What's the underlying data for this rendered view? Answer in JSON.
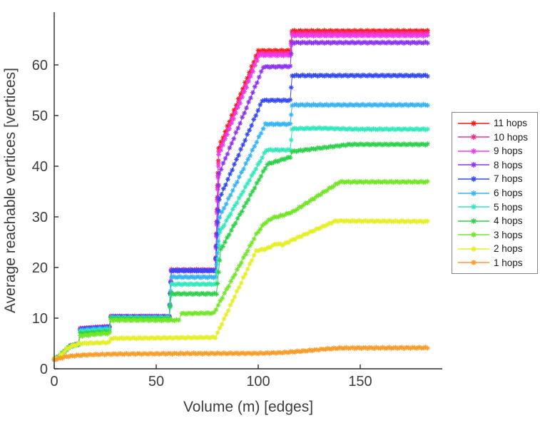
{
  "chart_data": {
    "type": "line",
    "title": "",
    "xlabel": "Volume (m) [edges]",
    "ylabel": "Average reachable vertices [vertices]",
    "xlim": [
      0,
      190
    ],
    "ylim": [
      0,
      70.4
    ],
    "xticks": [
      0,
      50,
      100,
      150
    ],
    "yticks": [
      0,
      10,
      20,
      30,
      40,
      50,
      60
    ],
    "grid": false,
    "marker": "asterisk",
    "axis_color": "#2b2b2b",
    "tick_label_color": "#3d3d3d",
    "legend_position": "outside-right",
    "series": [
      {
        "name": "11 hops",
        "color": "#fb1612",
        "points": [
          [
            0,
            1.9
          ],
          [
            2,
            2.3
          ],
          [
            4,
            3.0
          ],
          [
            6,
            3.8
          ],
          [
            8,
            4.5
          ],
          [
            10,
            4.7
          ],
          [
            12,
            4.9
          ],
          [
            12.8,
            7.9
          ],
          [
            22.3,
            8.2
          ],
          [
            27,
            8.3
          ],
          [
            27.8,
            10.3
          ],
          [
            56.4,
            10.3
          ],
          [
            57.4,
            19.5
          ],
          [
            79,
            19.5
          ],
          [
            80.6,
            43.6
          ],
          [
            100,
            62.8
          ],
          [
            115.7,
            62.8
          ],
          [
            116.6,
            66.7
          ],
          [
            183,
            66.7
          ]
        ]
      },
      {
        "name": "10 hops",
        "color": "#f8308c",
        "points": [
          [
            0,
            1.9
          ],
          [
            2,
            2.3
          ],
          [
            4,
            3.0
          ],
          [
            6,
            3.8
          ],
          [
            8,
            4.5
          ],
          [
            10,
            4.7
          ],
          [
            12,
            4.9
          ],
          [
            12.8,
            7.9
          ],
          [
            22.3,
            8.2
          ],
          [
            27,
            8.3
          ],
          [
            27.8,
            10.3
          ],
          [
            56.4,
            10.3
          ],
          [
            57.4,
            19.45
          ],
          [
            79,
            19.45
          ],
          [
            80.6,
            42.9
          ],
          [
            100,
            62.3
          ],
          [
            115.7,
            62.3
          ],
          [
            116.6,
            66.25
          ],
          [
            183,
            66.25
          ]
        ]
      },
      {
        "name": "9 hops",
        "color": "#ef38f2",
        "points": [
          [
            0,
            1.9
          ],
          [
            2,
            2.3
          ],
          [
            4,
            3.0
          ],
          [
            6,
            3.8
          ],
          [
            8,
            4.5
          ],
          [
            10,
            4.7
          ],
          [
            12,
            4.9
          ],
          [
            12.8,
            7.85
          ],
          [
            22.3,
            8.15
          ],
          [
            27,
            8.25
          ],
          [
            27.8,
            10.28
          ],
          [
            56.4,
            10.28
          ],
          [
            57.4,
            19.4
          ],
          [
            79,
            19.4
          ],
          [
            80.6,
            42.2
          ],
          [
            100.5,
            61.9
          ],
          [
            115.7,
            61.9
          ],
          [
            116.6,
            65.8
          ],
          [
            183,
            65.8
          ]
        ]
      },
      {
        "name": "8 hops",
        "color": "#8c32f2",
        "points": [
          [
            0,
            1.9
          ],
          [
            2,
            2.3
          ],
          [
            4,
            3.0
          ],
          [
            6,
            3.8
          ],
          [
            8,
            4.5
          ],
          [
            10,
            4.7
          ],
          [
            12,
            4.9
          ],
          [
            12.8,
            7.85
          ],
          [
            22.3,
            8.15
          ],
          [
            27,
            8.25
          ],
          [
            27.8,
            10.25
          ],
          [
            56.4,
            10.25
          ],
          [
            57.4,
            19.4
          ],
          [
            79,
            19.4
          ],
          [
            80.8,
            38.5
          ],
          [
            102.5,
            59.6
          ],
          [
            115.7,
            59.7
          ],
          [
            116.6,
            64.4
          ],
          [
            183,
            64.4
          ]
        ]
      },
      {
        "name": "7 hops",
        "color": "#3448f5",
        "points": [
          [
            0,
            1.9
          ],
          [
            2,
            2.3
          ],
          [
            4,
            3.0
          ],
          [
            6,
            3.8
          ],
          [
            8,
            4.5
          ],
          [
            10,
            4.7
          ],
          [
            12,
            4.9
          ],
          [
            12.8,
            7.85
          ],
          [
            22.3,
            8.15
          ],
          [
            27,
            8.25
          ],
          [
            27.8,
            10.3
          ],
          [
            56.4,
            10.3
          ],
          [
            57.4,
            19.4
          ],
          [
            79,
            19.4
          ],
          [
            80.9,
            33.5
          ],
          [
            102,
            53.0
          ],
          [
            115.7,
            53.0
          ],
          [
            116.6,
            57.9
          ],
          [
            183,
            57.9
          ]
        ]
      },
      {
        "name": "6 hops",
        "color": "#34b3f5",
        "points": [
          [
            0,
            1.9
          ],
          [
            2,
            2.3
          ],
          [
            4,
            3.0
          ],
          [
            6,
            3.8
          ],
          [
            8,
            4.4
          ],
          [
            10,
            4.65
          ],
          [
            12,
            4.85
          ],
          [
            12.8,
            7.6
          ],
          [
            22.3,
            7.9
          ],
          [
            27,
            8.0
          ],
          [
            27.8,
            10.15
          ],
          [
            56.4,
            10.15
          ],
          [
            57.4,
            18.1
          ],
          [
            79.2,
            18.1
          ],
          [
            81.1,
            30.0
          ],
          [
            103.5,
            48.3
          ],
          [
            115.7,
            48.3
          ],
          [
            116.6,
            52.1
          ],
          [
            183,
            52.1
          ]
        ]
      },
      {
        "name": "5 hops",
        "color": "#30e8bc",
        "points": [
          [
            0,
            1.9
          ],
          [
            2,
            2.3
          ],
          [
            4,
            3.0
          ],
          [
            6,
            3.8
          ],
          [
            8,
            4.4
          ],
          [
            10,
            4.6
          ],
          [
            12,
            4.8
          ],
          [
            12.8,
            7.35
          ],
          [
            22.3,
            7.65
          ],
          [
            27,
            7.75
          ],
          [
            27.8,
            10.0
          ],
          [
            56.4,
            10.0
          ],
          [
            57.4,
            16.7
          ],
          [
            79.3,
            16.7
          ],
          [
            81.3,
            27.0
          ],
          [
            104,
            43.2
          ],
          [
            115.7,
            43.2
          ],
          [
            116.6,
            47.4
          ],
          [
            130,
            47.5
          ],
          [
            148,
            47.3
          ],
          [
            183,
            47.3
          ]
        ]
      },
      {
        "name": "4 hops",
        "color": "#2bd14b",
        "points": [
          [
            0,
            1.9
          ],
          [
            2,
            2.3
          ],
          [
            4,
            3.1
          ],
          [
            6,
            3.9
          ],
          [
            8,
            4.5
          ],
          [
            10,
            4.65
          ],
          [
            12,
            4.85
          ],
          [
            12.8,
            6.95
          ],
          [
            22.3,
            7.25
          ],
          [
            27,
            7.35
          ],
          [
            27.8,
            9.9
          ],
          [
            56.4,
            9.9
          ],
          [
            57.4,
            14.8
          ],
          [
            79.5,
            14.8
          ],
          [
            81.6,
            23.5
          ],
          [
            104.5,
            40.4
          ],
          [
            115.7,
            41.8
          ],
          [
            116.6,
            42.9
          ],
          [
            145,
            44.3
          ],
          [
            183,
            44.3
          ]
        ]
      },
      {
        "name": "3 hops",
        "color": "#71e627",
        "points": [
          [
            0,
            1.9
          ],
          [
            2,
            2.3
          ],
          [
            4,
            3.1
          ],
          [
            6,
            3.9
          ],
          [
            8,
            4.5
          ],
          [
            10,
            4.7
          ],
          [
            12,
            4.9
          ],
          [
            12.8,
            6.5
          ],
          [
            22,
            6.9
          ],
          [
            27,
            7.0
          ],
          [
            27.8,
            9.6
          ],
          [
            61,
            9.6
          ],
          [
            62.5,
            10.9
          ],
          [
            78.3,
            11.0
          ],
          [
            99,
            26.5
          ],
          [
            103,
            28.7
          ],
          [
            107,
            29.8
          ],
          [
            112,
            30.3
          ],
          [
            117,
            31.0
          ],
          [
            140,
            36.9
          ],
          [
            183,
            36.9
          ]
        ]
      },
      {
        "name": "2 hops",
        "color": "#e4ef25",
        "points": [
          [
            0,
            1.9
          ],
          [
            2,
            2.2
          ],
          [
            4,
            3.0
          ],
          [
            6,
            3.8
          ],
          [
            8,
            4.4
          ],
          [
            10,
            4.6
          ],
          [
            12.8,
            5.0
          ],
          [
            20,
            5.1
          ],
          [
            27,
            5.2
          ],
          [
            27.8,
            6.0
          ],
          [
            79,
            6.2
          ],
          [
            99,
            23.3
          ],
          [
            104,
            23.7
          ],
          [
            109,
            24.7
          ],
          [
            112,
            24.5
          ],
          [
            116,
            25.3
          ],
          [
            138,
            29.2
          ],
          [
            183,
            29.1
          ]
        ]
      },
      {
        "name": "1 hops",
        "color": "#f89c28",
        "points": [
          [
            0,
            1.8
          ],
          [
            3,
            2.1
          ],
          [
            6,
            2.4
          ],
          [
            10,
            2.6
          ],
          [
            16,
            2.75
          ],
          [
            28,
            2.9
          ],
          [
            60,
            3.0
          ],
          [
            100,
            3.05
          ],
          [
            112,
            3.2
          ],
          [
            122,
            3.5
          ],
          [
            133,
            3.9
          ],
          [
            140,
            4.1
          ],
          [
            183,
            4.15
          ]
        ]
      }
    ]
  }
}
